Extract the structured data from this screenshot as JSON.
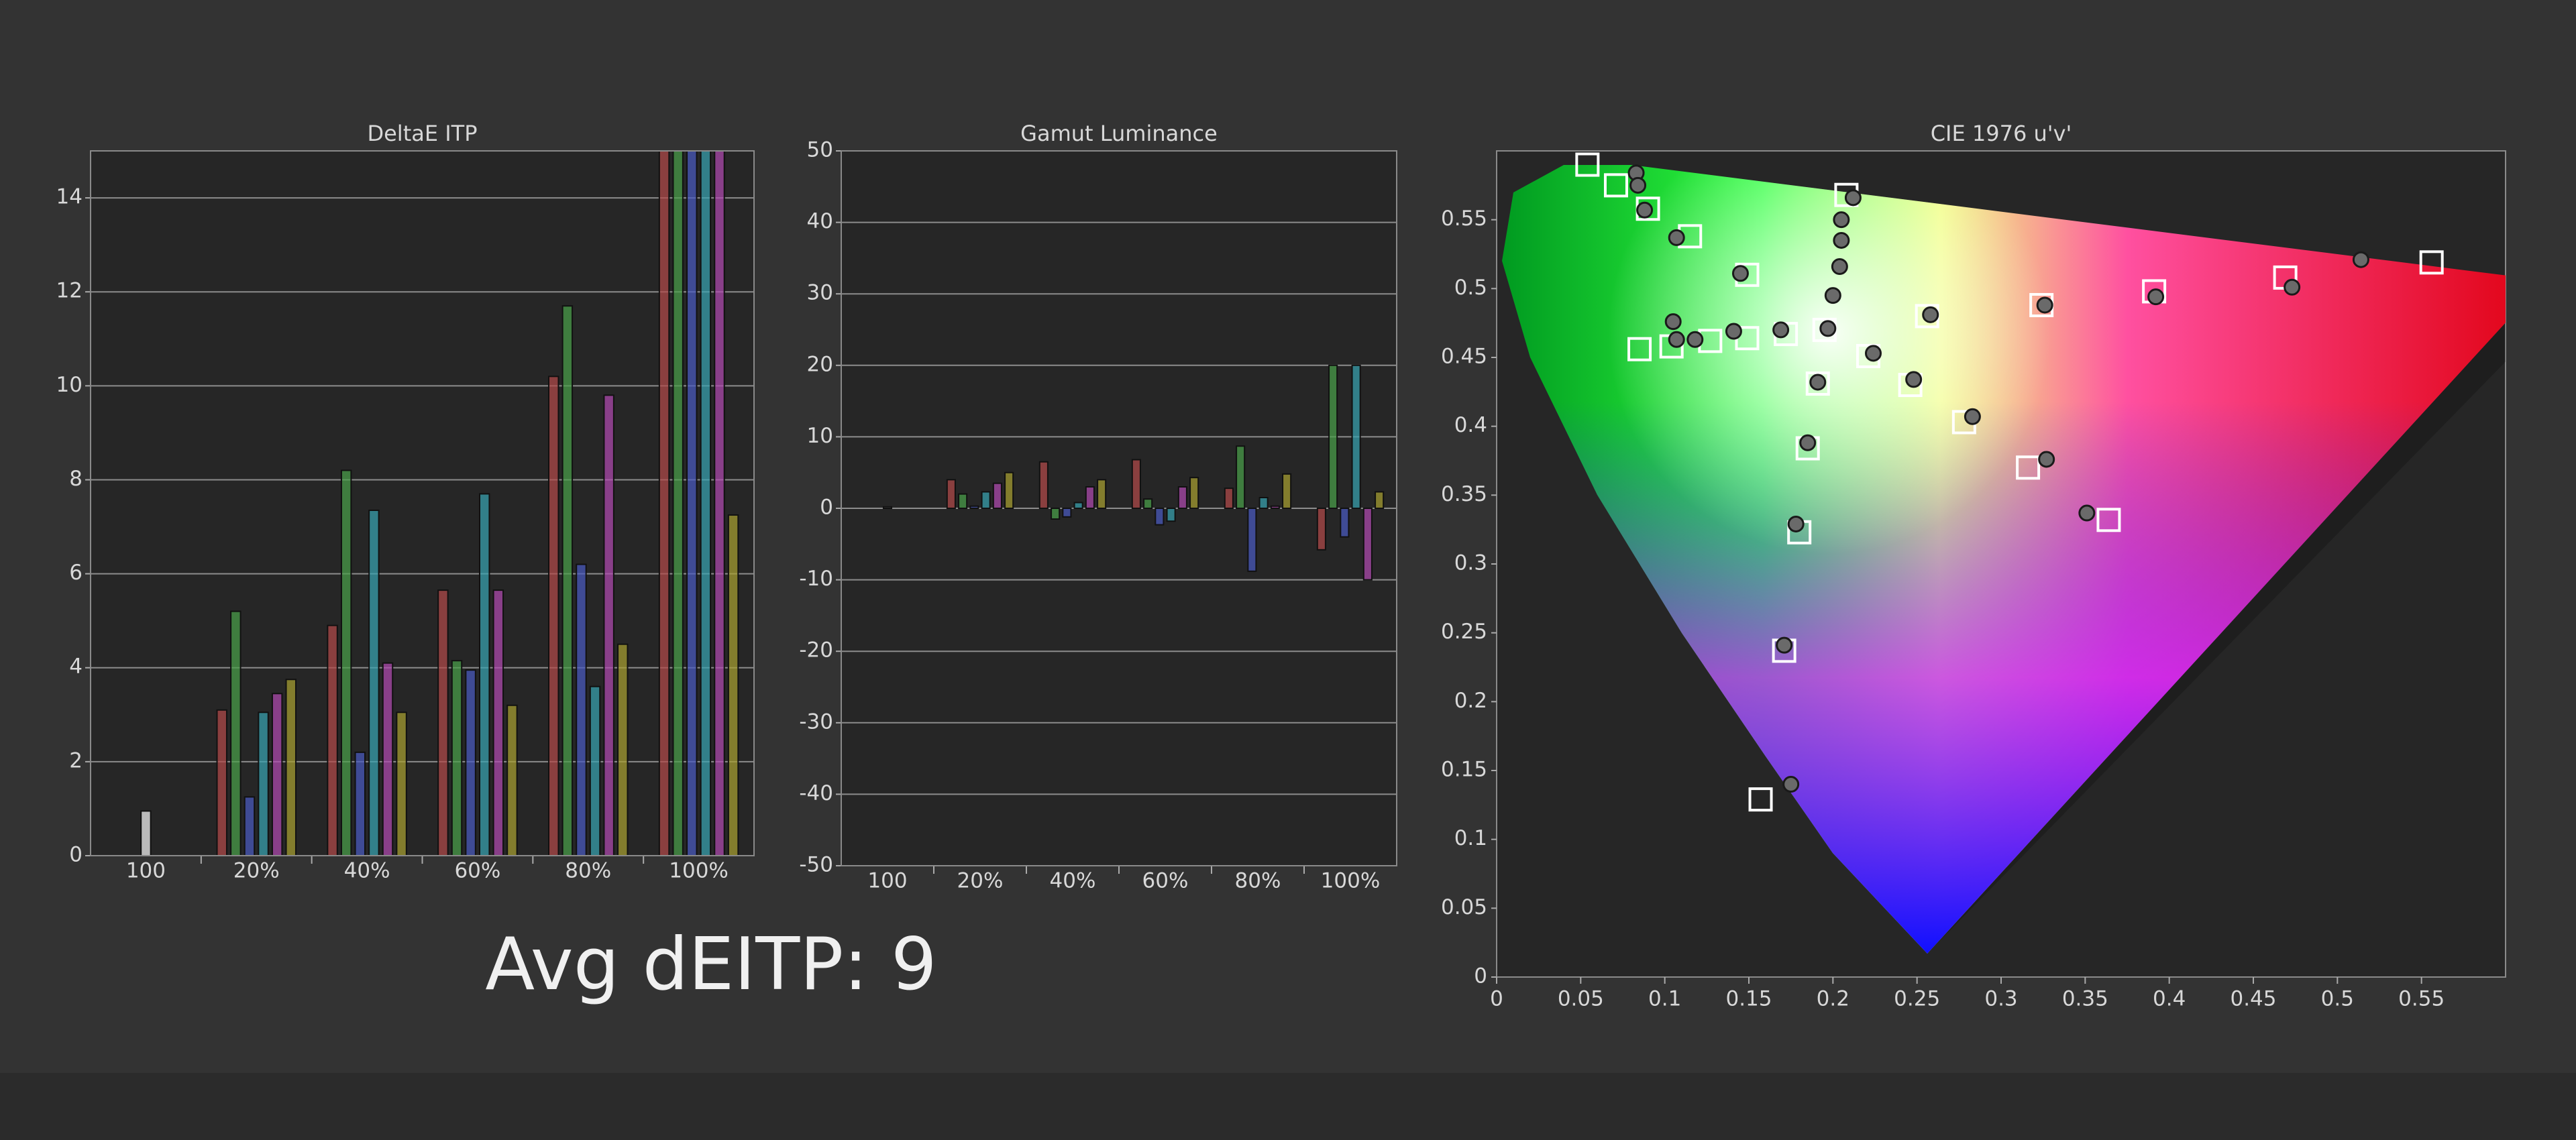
{
  "chart_data": [
    {
      "type": "bar",
      "title": "DeltaE ITP",
      "categories": [
        "100",
        "20%",
        "40%",
        "60%",
        "80%",
        "100%"
      ],
      "series": [
        {
          "color": "#f4f4f4",
          "values": [
            0.95,
            null,
            null,
            null,
            null,
            null
          ]
        },
        {
          "color": "#b24a4a",
          "values": [
            null,
            3.1,
            4.9,
            5.65,
            10.2,
            16
          ]
        },
        {
          "color": "#4aa04a",
          "values": [
            null,
            5.2,
            8.2,
            4.15,
            11.7,
            16
          ]
        },
        {
          "color": "#4a5ac0",
          "values": [
            null,
            1.25,
            2.2,
            3.95,
            6.2,
            16
          ]
        },
        {
          "color": "#38a2b0",
          "values": [
            null,
            3.05,
            7.35,
            7.7,
            3.6,
            16
          ]
        },
        {
          "color": "#b04ab0",
          "values": [
            null,
            3.45,
            4.1,
            5.65,
            9.8,
            16
          ]
        },
        {
          "color": "#a8a030",
          "values": [
            null,
            3.75,
            3.05,
            3.2,
            4.5,
            7.25
          ]
        }
      ],
      "ylim": [
        0,
        15
      ],
      "yticks": [
        0,
        2,
        4,
        6,
        8,
        10,
        12,
        14
      ],
      "grid": true
    },
    {
      "type": "bar",
      "title": "Gamut Luminance",
      "categories": [
        "100",
        "20%",
        "40%",
        "60%",
        "80%",
        "100%"
      ],
      "series": [
        {
          "color": "#f4f4f4",
          "values": [
            0.2,
            null,
            null,
            null,
            null,
            null
          ]
        },
        {
          "color": "#b24a4a",
          "values": [
            null,
            4,
            6.5,
            6.8,
            2.8,
            -5.8
          ]
        },
        {
          "color": "#4aa04a",
          "values": [
            null,
            2,
            -1.5,
            1.3,
            8.7,
            20
          ]
        },
        {
          "color": "#4a5ac0",
          "values": [
            null,
            0.3,
            -1.2,
            -2.3,
            -8.8,
            -4
          ]
        },
        {
          "color": "#38a2b0",
          "values": [
            null,
            2.3,
            0.8,
            -1.8,
            1.5,
            20
          ]
        },
        {
          "color": "#b04ab0",
          "values": [
            null,
            3.5,
            3,
            3,
            0.3,
            -10
          ]
        },
        {
          "color": "#a8a030",
          "values": [
            null,
            5,
            4,
            4.3,
            4.8,
            2.3
          ]
        }
      ],
      "ylim": [
        -50,
        50
      ],
      "yticks": [
        -50,
        -40,
        -30,
        -20,
        -10,
        0,
        10,
        20,
        30,
        40,
        50
      ],
      "grid": true
    },
    {
      "type": "scatter",
      "title": "CIE 1976 u'v'",
      "series": [
        {
          "marker": "square",
          "color": "#ffffff",
          "x": [
            0.054,
            0.071,
            0.09,
            0.115,
            0.149,
            0.208,
            0.195,
            0.256,
            0.324,
            0.391,
            0.469,
            0.556,
            0.085,
            0.104,
            0.127,
            0.149,
            0.172,
            0.221,
            0.246,
            0.278,
            0.316,
            0.364,
            0.191,
            0.185,
            0.18,
            0.171,
            0.157
          ],
          "values": [
            0.59,
            0.575,
            0.558,
            0.538,
            0.51,
            0.568,
            0.47,
            0.48,
            0.488,
            0.498,
            0.508,
            0.519,
            0.456,
            0.458,
            0.462,
            0.464,
            0.467,
            0.451,
            0.43,
            0.403,
            0.37,
            0.332,
            0.431,
            0.384,
            0.323,
            0.237,
            0.129
          ]
        },
        {
          "marker": "circle",
          "color": "#6a6a6a",
          "x": [
            0.083,
            0.084,
            0.088,
            0.107,
            0.145,
            0.212,
            0.205,
            0.205,
            0.204,
            0.2,
            0.197,
            0.258,
            0.326,
            0.392,
            0.473,
            0.514,
            0.105,
            0.107,
            0.118,
            0.141,
            0.169,
            0.224,
            0.248,
            0.283,
            0.327,
            0.351,
            0.191,
            0.185,
            0.178,
            0.171,
            0.175
          ],
          "values": [
            0.584,
            0.575,
            0.557,
            0.537,
            0.511,
            0.566,
            0.55,
            0.535,
            0.516,
            0.495,
            0.471,
            0.481,
            0.488,
            0.494,
            0.501,
            0.521,
            0.476,
            0.463,
            0.463,
            0.469,
            0.47,
            0.453,
            0.434,
            0.407,
            0.376,
            0.337,
            0.432,
            0.388,
            0.329,
            0.241,
            0.14
          ]
        }
      ],
      "xlim": [
        0,
        0.6
      ],
      "xticks": [
        0,
        0.05,
        0.1,
        0.15,
        0.2,
        0.25,
        0.3,
        0.35,
        0.4,
        0.45,
        0.5,
        0.55
      ],
      "ylim": [
        0,
        0.6
      ],
      "yticks": [
        0,
        0.05,
        0.1,
        0.15,
        0.2,
        0.25,
        0.3,
        0.35,
        0.4,
        0.45,
        0.5,
        0.55
      ],
      "grid": false
    }
  ],
  "summary": "Avg dEITP: 9"
}
